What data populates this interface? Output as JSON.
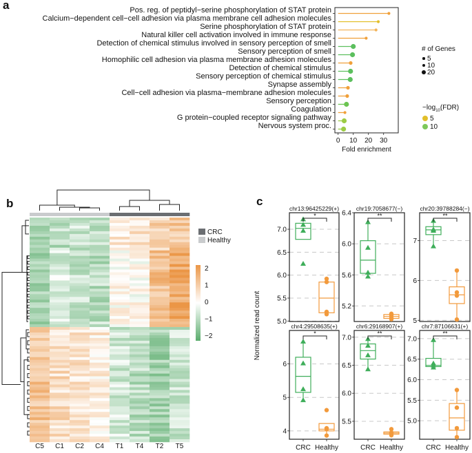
{
  "panels": {
    "a": "a",
    "b": "b",
    "c": "c"
  },
  "colors": {
    "orange": "#f0a03a",
    "yellow": "#e2bf2a",
    "light_orange": "#f2b35a",
    "green": "#5cbf5e",
    "yellow_green": "#9ccc45",
    "crc_green": "#3fae5a",
    "healthy_orange": "#f29a3c",
    "crc_bar": "#6b6e72",
    "healthy_bar": "#c9cbcd"
  },
  "chart_data": [
    {
      "type": "lollipop",
      "panel": "a",
      "xlabel": "Fold enrichment",
      "xticks": [
        0,
        10,
        20,
        30
      ],
      "xlim": [
        -2,
        38
      ],
      "categories": [
        "Pos. reg. of peptidyl−serine phosphorylation of STAT protein",
        "Calcium−dependent cell−cell adhesion via plasma membrane cell adhesion molecules",
        "Serine phosphorylation of STAT protein",
        "Natural killer cell activation involved in immune response",
        "Detection of chemical stimulus involved in sensory perception of smell",
        "Sensory perception of smell",
        "Homophilic cell adhesion via plasma membrane adhesion molecules",
        "Detection of chemical stimulus",
        "Sensory perception of chemical stimulus",
        "Synapse assembly",
        "Cell−cell adhesion via plasma−membrane adhesion molecules",
        "Sensory perception",
        "Coagulation",
        "G protein−coupled receptor signaling pathway",
        "Nervous system proc."
      ],
      "fold_enrichment": [
        33.5,
        26.5,
        25,
        18.5,
        10,
        9.5,
        8.3,
        8.2,
        8,
        6.5,
        6,
        5.5,
        4.5,
        4,
        3.6
      ],
      "num_genes": [
        5,
        6,
        5,
        5,
        20,
        20,
        8,
        18,
        18,
        8,
        8,
        15,
        6,
        15,
        15
      ],
      "neg_log10_fdr": [
        3,
        5,
        4,
        3,
        12,
        12,
        3,
        11,
        11,
        3,
        3,
        10,
        3,
        8,
        7
      ],
      "legend_size": {
        "title": "# of Genes",
        "entries": [
          "5",
          "10",
          "20"
        ],
        "values": [
          5,
          10,
          20
        ]
      },
      "legend_color": {
        "title_prefix": "−log",
        "title_sub": "10",
        "title_suffix": "(FDR)",
        "entries": [
          "5",
          "10"
        ],
        "values": [
          5,
          10
        ]
      }
    },
    {
      "type": "heatmap",
      "panel": "b",
      "columns": [
        "C5",
        "C1",
        "C2",
        "C4",
        "T1",
        "T4",
        "T2",
        "T5"
      ],
      "column_groups": [
        "Healthy",
        "Healthy",
        "Healthy",
        "Healthy",
        "CRC",
        "CRC",
        "CRC",
        "CRC"
      ],
      "group_legend": [
        {
          "label": "CRC"
        },
        {
          "label": "Healthy"
        }
      ],
      "colorbar_ticks": [
        "2",
        "1",
        "0",
        "−1",
        "−2"
      ],
      "colorbar_range": [
        -2.2,
        2.2
      ],
      "row_clusters": [
        {
          "rows": 12,
          "pattern": [
            -1.0,
            -0.9,
            -0.7,
            -0.9,
            0.4,
            0.6,
            0.9,
            1.1
          ]
        },
        {
          "rows": 28,
          "pattern": [
            -1.1,
            -0.5,
            -0.7,
            -0.9,
            0.1,
            0.1,
            1.3,
            1.8
          ]
        },
        {
          "rows": 42,
          "pattern": [
            1.2,
            0.7,
            0.6,
            0.4,
            -0.6,
            -0.9,
            -1.2,
            -0.7
          ]
        }
      ]
    },
    {
      "type": "boxplot",
      "panel": "c",
      "ylabel": "Normalized read count",
      "categories": [
        "CRC",
        "Healthy"
      ],
      "subplots": [
        {
          "title": "chr13:96425229(+)",
          "sig": "*",
          "yticks": [
            "7.0",
            "6.5",
            "6.0",
            "5.5",
            "5.0"
          ],
          "ytick_values": [
            7.0,
            6.5,
            6.0,
            5.5,
            5.0
          ],
          "ylim": [
            4.99,
            7.36
          ],
          "crc": {
            "points": [
              7.22,
              7.1,
              6.97,
              6.25
            ],
            "q1": 6.78,
            "median": 7.02,
            "q3": 7.13,
            "whisker_low": 6.78,
            "whisker_high": 7.13
          },
          "healthy": {
            "points": [
              5.92,
              5.85,
              5.2,
              5.15
            ],
            "q1": 5.18,
            "median": 5.5,
            "q3": 5.85,
            "whisker_low": 5.13,
            "whisker_high": 5.92
          }
        },
        {
          "title": "chr19:7058677(−)",
          "sig": "**",
          "yticks": [
            "6.4",
            "6.0",
            "5.6",
            "5.2"
          ],
          "ytick_values": [
            6.4,
            6.0,
            5.6,
            5.2
          ],
          "ylim": [
            5.0,
            6.4
          ],
          "crc": {
            "points": [
              6.28,
              5.95,
              5.63,
              5.58
            ],
            "q1": 5.62,
            "median": 5.79,
            "q3": 6.04,
            "whisker_low": 5.58,
            "whisker_high": 6.28
          },
          "healthy": {
            "points": [
              5.1,
              5.08,
              5.05,
              5.03
            ],
            "q1": 5.04,
            "median": 5.065,
            "q3": 5.09,
            "whisker_low": 5.03,
            "whisker_high": 5.1
          }
        },
        {
          "title": "chr20:39788284(−)",
          "sig": "**",
          "yticks": [
            "7",
            "6",
            "5"
          ],
          "ytick_values": [
            7,
            6,
            5
          ],
          "ylim": [
            4.97,
            7.7
          ],
          "crc": {
            "points": [
              7.5,
              7.28,
              7.25,
              6.86
            ],
            "q1": 7.15,
            "median": 7.27,
            "q3": 7.35,
            "whisker_low": 6.86,
            "whisker_high": 7.5
          },
          "healthy": {
            "points": [
              6.25,
              5.7,
              5.62,
              5.02
            ],
            "q1": 5.42,
            "median": 5.64,
            "q3": 5.84,
            "whisker_low": 5.02,
            "whisker_high": 6.25
          }
        },
        {
          "title": "chr4:29508635(+)",
          "sig": "*",
          "yticks": [
            "6",
            "5",
            "4"
          ],
          "ytick_values": [
            6,
            5,
            4
          ],
          "ylim": [
            3.75,
            7.0
          ],
          "crc": {
            "points": [
              6.67,
              6.02,
              5.25,
              4.92
            ],
            "q1": 5.15,
            "median": 5.63,
            "q3": 6.2,
            "whisker_low": 4.92,
            "whisker_high": 6.67
          },
          "healthy": {
            "points": [
              4.62,
              4.08,
              4.05,
              3.86
            ],
            "q1": 4.0,
            "median": 4.05,
            "q3": 4.22,
            "whisker_low": 3.86,
            "whisker_high": 4.22
          }
        },
        {
          "title": "chr6:29168907(+)",
          "sig": "**",
          "yticks": [
            "7.0",
            "6.5",
            "6.0",
            "5.5"
          ],
          "ytick_values": [
            7.0,
            6.5,
            6.0,
            5.5
          ],
          "ylim": [
            5.18,
            7.12
          ],
          "crc": {
            "points": [
              6.97,
              6.85,
              6.68,
              6.43
            ],
            "q1": 6.61,
            "median": 6.76,
            "q3": 6.88,
            "whisker_low": 6.43,
            "whisker_high": 6.97
          },
          "healthy": {
            "points": [
              5.36,
              5.3,
              5.28,
              5.25
            ],
            "q1": 5.27,
            "median": 5.29,
            "q3": 5.31,
            "whisker_low": 5.25,
            "whisker_high": 5.36
          }
        },
        {
          "title": "chr7:87106631(+)",
          "sig": "**",
          "yticks": [
            "7.0",
            "6.5",
            "6.0",
            "5.5",
            "5.0"
          ],
          "ytick_values": [
            7.0,
            6.5,
            6.0,
            5.5,
            5.0
          ],
          "ylim": [
            4.55,
            7.2
          ],
          "crc": {
            "points": [
              6.97,
              6.4,
              6.35,
              6.3
            ],
            "q1": 6.32,
            "median": 6.35,
            "q3": 6.52,
            "whisker_low": 6.3,
            "whisker_high": 6.97
          },
          "healthy": {
            "points": [
              5.75,
              5.32,
              4.82,
              4.6
            ],
            "q1": 4.77,
            "median": 5.07,
            "q3": 5.42,
            "whisker_low": 4.6,
            "whisker_high": 5.75
          }
        }
      ]
    }
  ]
}
